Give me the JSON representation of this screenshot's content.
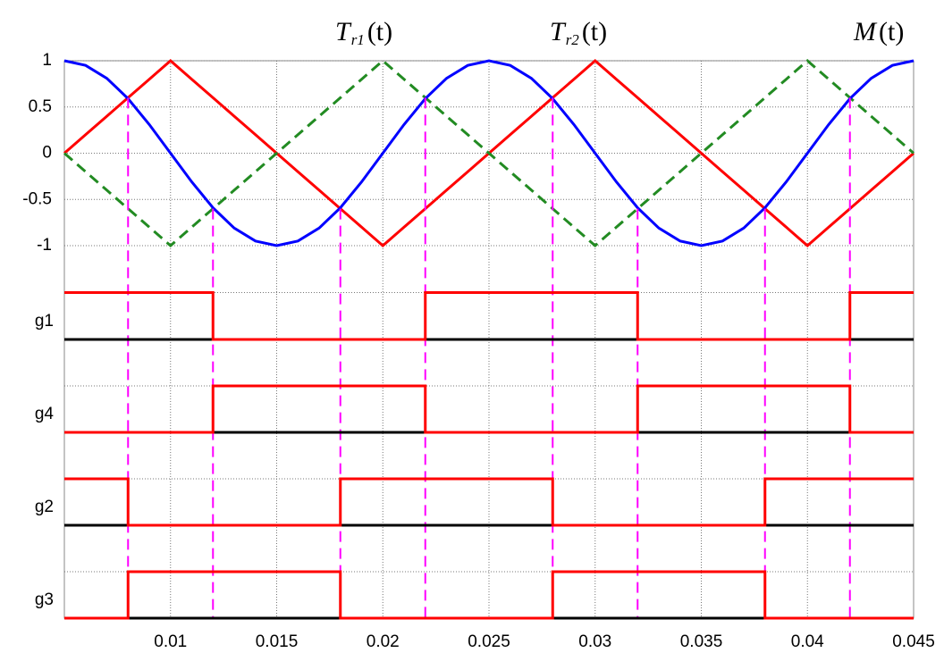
{
  "chart_data": [
    {
      "type": "line",
      "x": [
        0.005,
        0.006,
        0.007,
        0.008,
        0.009,
        0.01,
        0.011,
        0.012,
        0.013,
        0.014,
        0.015,
        0.016,
        0.017,
        0.018,
        0.019,
        0.02,
        0.021,
        0.022,
        0.023,
        0.024,
        0.025,
        0.026,
        0.027,
        0.028,
        0.029,
        0.03,
        0.031,
        0.032,
        0.033,
        0.034,
        0.035,
        0.036,
        0.037,
        0.038,
        0.039,
        0.04,
        0.041,
        0.042,
        0.043,
        0.044,
        0.045
      ],
      "series": [
        {
          "name": "T",
          "subscript": "r1",
          "argument": "(t)",
          "color": "#ff0000",
          "dashed": false,
          "values": [
            0,
            0.2,
            0.4,
            0.6,
            0.8,
            1,
            0.8,
            0.6,
            0.4,
            0.2,
            0,
            -0.2,
            -0.4,
            -0.6,
            -0.8,
            -1,
            -0.8,
            -0.6,
            -0.4,
            -0.2,
            0,
            0.2,
            0.4,
            0.6,
            0.8,
            1,
            0.8,
            0.6,
            0.4,
            0.2,
            0,
            -0.2,
            -0.4,
            -0.6,
            -0.8,
            -1,
            -0.8,
            -0.6,
            -0.4,
            -0.2,
            0
          ]
        },
        {
          "name": "T",
          "subscript": "r2",
          "argument": "(t)",
          "color": "#228b22",
          "dashed": true,
          "values": [
            0,
            -0.2,
            -0.4,
            -0.6,
            -0.8,
            -1,
            -0.8,
            -0.6,
            -0.4,
            -0.2,
            0,
            0.2,
            0.4,
            0.6,
            0.8,
            1,
            0.8,
            0.6,
            0.4,
            0.2,
            0,
            -0.2,
            -0.4,
            -0.6,
            -0.8,
            -1,
            -0.8,
            -0.6,
            -0.4,
            -0.2,
            0,
            0.2,
            0.4,
            0.6,
            0.8,
            1,
            0.8,
            0.6,
            0.4,
            0.2,
            0
          ]
        },
        {
          "name": "M",
          "argument": "(t)",
          "color": "#0000ff",
          "dashed": false,
          "values": [
            1,
            0.95,
            0.81,
            0.59,
            0.31,
            0,
            -0.31,
            -0.59,
            -0.81,
            -0.95,
            -1,
            -0.95,
            -0.81,
            -0.59,
            -0.31,
            0,
            0.31,
            0.59,
            0.81,
            0.95,
            1,
            0.95,
            0.81,
            0.59,
            0.31,
            0,
            -0.31,
            -0.59,
            -0.81,
            -0.95,
            -1,
            -0.95,
            -0.81,
            -0.59,
            -0.31,
            0,
            0.31,
            0.59,
            0.81,
            0.95,
            1
          ]
        }
      ],
      "crossings": {
        "color": "#ff00ff",
        "x": [
          0.008,
          0.012,
          0.018,
          0.022,
          0.028,
          0.032,
          0.038,
          0.042
        ],
        "values": [
          0.6,
          -0.6,
          -0.6,
          0.6,
          0.6,
          -0.6,
          -0.6,
          0.6
        ]
      },
      "xlim": [
        0.005,
        0.045
      ],
      "xticks": [
        0.01,
        0.015,
        0.02,
        0.025,
        0.03,
        0.035,
        0.04
      ],
      "ylim": [
        -1,
        1
      ],
      "yticks": [
        1,
        0.5,
        0,
        -0.5,
        -1
      ],
      "grid": true
    },
    {
      "type": "step",
      "label": "g1",
      "color": "#ff0000",
      "x": [
        0.005,
        0.012,
        0.022,
        0.032,
        0.042
      ],
      "values": [
        1,
        0,
        1,
        0,
        1
      ],
      "xlim": [
        0.005,
        0.045
      ],
      "ylim": [
        0,
        2
      ],
      "grid": true
    },
    {
      "type": "step",
      "label": "g4",
      "color": "#ff0000",
      "x": [
        0.005,
        0.012,
        0.022,
        0.032,
        0.042
      ],
      "values": [
        0,
        1,
        0,
        1,
        0
      ],
      "xlim": [
        0.005,
        0.045
      ],
      "ylim": [
        0,
        2
      ],
      "grid": true
    },
    {
      "type": "step",
      "label": "g2",
      "color": "#ff0000",
      "x": [
        0.005,
        0.008,
        0.018,
        0.028,
        0.038
      ],
      "values": [
        1,
        0,
        1,
        0,
        1
      ],
      "xlim": [
        0.005,
        0.045
      ],
      "ylim": [
        0,
        2
      ],
      "grid": true
    },
    {
      "type": "step",
      "label": "g3",
      "color": "#ff0000",
      "x": [
        0.005,
        0.008,
        0.018,
        0.028,
        0.038
      ],
      "values": [
        0,
        1,
        0,
        1,
        0
      ],
      "xlim": [
        0.005,
        0.045
      ],
      "ylim": [
        0,
        2
      ],
      "grid": true,
      "xticks": [
        0.01,
        0.015,
        0.02,
        0.025,
        0.03,
        0.035,
        0.04,
        0.045
      ]
    }
  ]
}
